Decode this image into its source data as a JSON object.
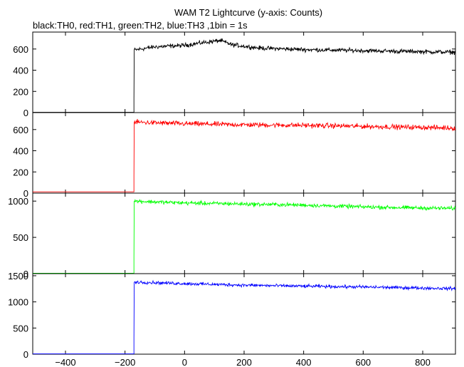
{
  "chart_data": {
    "type": "line",
    "title": "WAM T2 Lightcurve (y-axis: Counts)",
    "subtitle": "black:TH0, red:TH1, green:TH2, blue:TH3 ,1bin = 1s",
    "x_ticks": [
      -400,
      -200,
      0,
      200,
      400,
      600,
      800
    ],
    "xlim": [
      -510,
      910
    ],
    "panels": [
      {
        "color": "#000000",
        "ylim": [
          0,
          760
        ],
        "y_ticks": [
          0,
          200,
          400,
          600
        ],
        "pre_level": 3,
        "trigger_x": -170,
        "post_points": [
          [
            -170,
            590
          ],
          [
            -100,
            620
          ],
          [
            0,
            635
          ],
          [
            60,
            660
          ],
          [
            120,
            680
          ],
          [
            160,
            640
          ],
          [
            250,
            610
          ],
          [
            400,
            595
          ],
          [
            600,
            585
          ],
          [
            800,
            575
          ],
          [
            900,
            570
          ]
        ],
        "noise": 30
      },
      {
        "color": "#ff0000",
        "ylim": [
          0,
          760
        ],
        "y_ticks": [
          0,
          200,
          400,
          600
        ],
        "pre_level": 12,
        "trigger_x": -170,
        "post_points": [
          [
            -170,
            670
          ],
          [
            0,
            655
          ],
          [
            200,
            645
          ],
          [
            400,
            640
          ],
          [
            600,
            630
          ],
          [
            800,
            620
          ],
          [
            900,
            615
          ]
        ],
        "noise": 35
      },
      {
        "color": "#00ff00",
        "ylim": [
          0,
          1110
        ],
        "y_ticks": [
          0,
          500,
          1000
        ],
        "pre_level": 5,
        "trigger_x": -170,
        "post_points": [
          [
            -170,
            1000
          ],
          [
            0,
            975
          ],
          [
            200,
            960
          ],
          [
            400,
            945
          ],
          [
            600,
            920
          ],
          [
            800,
            905
          ],
          [
            900,
            900
          ]
        ],
        "noise": 40
      },
      {
        "color": "#0000ff",
        "ylim": [
          0,
          1540
        ],
        "y_ticks": [
          0,
          500,
          1000,
          1500
        ],
        "pre_level": 5,
        "trigger_x": -170,
        "post_points": [
          [
            -170,
            1380
          ],
          [
            0,
            1350
          ],
          [
            200,
            1320
          ],
          [
            400,
            1300
          ],
          [
            600,
            1285
          ],
          [
            800,
            1265
          ],
          [
            900,
            1255
          ]
        ],
        "noise": 45
      }
    ]
  }
}
